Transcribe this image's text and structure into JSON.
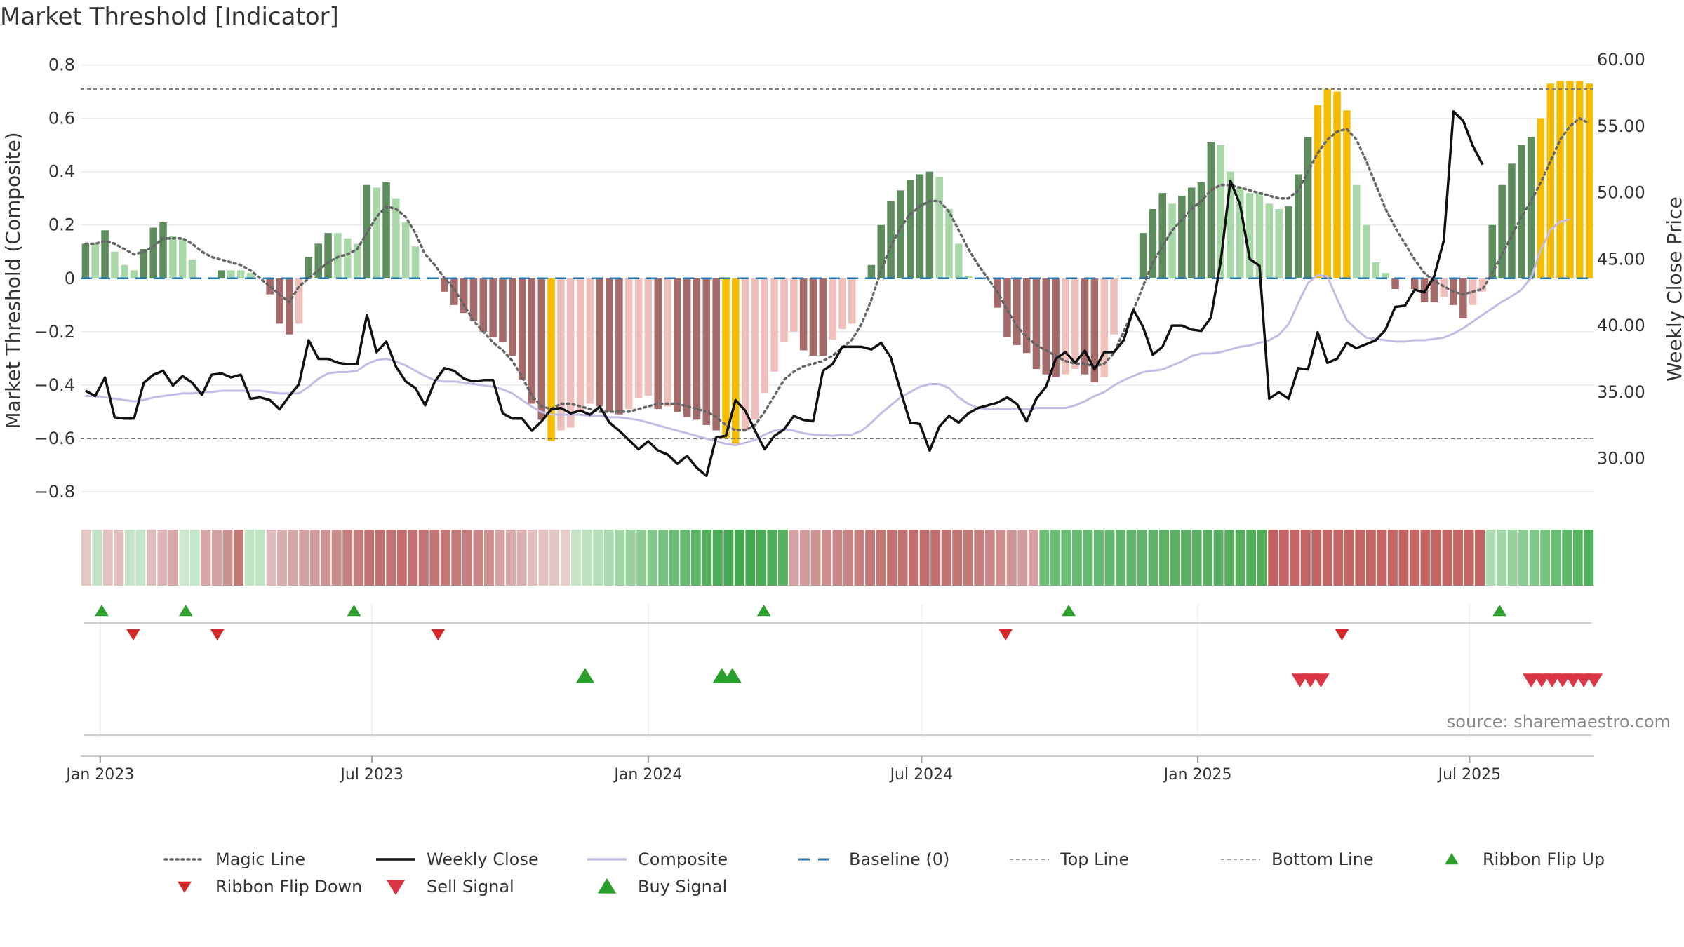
{
  "chart_data": {
    "type": "bar",
    "title": "Market Threshold [Indicator]",
    "source": "source: sharemaestro.com",
    "ylabel_left": "Market Threshold (Composite)",
    "ylabel_right": "Weekly Close Price",
    "ylim_left": [
      -0.85,
      0.82
    ],
    "ylim_right": [
      26.5,
      60.0
    ],
    "yticks_left": [
      "0.8",
      "0.6",
      "0.4",
      "0.2",
      "0",
      "−0.2",
      "−0.4",
      "−0.6",
      "−0.8"
    ],
    "yticks_left_values": [
      0.8,
      0.6,
      0.4,
      0.2,
      0,
      -0.2,
      -0.4,
      -0.6,
      -0.8
    ],
    "yticks_right": [
      "60.00",
      "55.00",
      "50.00",
      "45.00",
      "40.00",
      "35.00",
      "30.00"
    ],
    "yticks_right_values": [
      60,
      55,
      50,
      45,
      40,
      35,
      30
    ],
    "x_start": "2022-12-19",
    "x_end": "2025-09-22",
    "xticks": [
      "Jan 2023",
      "Jul 2023",
      "Jan 2024",
      "Jul 2024",
      "Jan 2025",
      "Jul 2025"
    ],
    "xtick_dates": [
      "2023-01-01",
      "2023-07-01",
      "2024-01-01",
      "2024-07-01",
      "2025-01-01",
      "2025-07-01"
    ],
    "top_line": 0.71,
    "bottom_line": -0.6,
    "baseline": 0,
    "composite": [
      0.13,
      0.13,
      0.18,
      0.1,
      0.05,
      0.03,
      0.11,
      0.19,
      0.21,
      0.16,
      0.15,
      0.07,
      0,
      0,
      0.03,
      0.03,
      0.03,
      0.02,
      0,
      -0.06,
      -0.17,
      -0.21,
      -0.17,
      0.08,
      0.13,
      0.17,
      0.17,
      0.15,
      0.13,
      0.35,
      0.34,
      0.36,
      0.3,
      0.21,
      0.12,
      0,
      0,
      -0.05,
      -0.1,
      -0.13,
      -0.16,
      -0.2,
      -0.22,
      -0.24,
      -0.29,
      -0.38,
      -0.47,
      -0.53,
      -0.61,
      -0.57,
      -0.56,
      -0.5,
      -0.47,
      -0.48,
      -0.5,
      -0.51,
      -0.49,
      -0.45,
      -0.44,
      -0.49,
      -0.48,
      -0.5,
      -0.52,
      -0.53,
      -0.55,
      -0.57,
      -0.6,
      -0.62,
      -0.57,
      -0.53,
      -0.43,
      -0.35,
      -0.24,
      -0.2,
      -0.27,
      -0.29,
      -0.29,
      -0.23,
      -0.19,
      -0.17,
      0,
      0.05,
      0.2,
      0.29,
      0.33,
      0.37,
      0.39,
      0.4,
      0.38,
      0.26,
      0.13,
      0.01,
      0,
      0,
      -0.11,
      -0.22,
      -0.25,
      -0.28,
      -0.34,
      -0.36,
      -0.37,
      -0.36,
      -0.34,
      -0.36,
      -0.39,
      -0.37,
      -0.21,
      0,
      0,
      0.17,
      0.26,
      0.32,
      0.28,
      0.31,
      0.34,
      0.36,
      0.51,
      0.5,
      0.4,
      0.34,
      0.32,
      0.32,
      0.28,
      0.26,
      0.27,
      0.39,
      0.53,
      0.65,
      0.71,
      0.7,
      0.63,
      0.35,
      0.2,
      0.06,
      0.02,
      -0.04,
      0,
      -0.04,
      -0.09,
      -0.09,
      -0.07,
      -0.1,
      -0.15,
      -0.1,
      -0.05,
      0.2,
      0.35,
      0.43,
      0.5,
      0.53,
      0.6,
      0.73,
      0.74,
      0.74,
      0.74,
      0.73
    ],
    "magic_line": [
      0.13,
      0.13,
      0.14,
      0.13,
      0.11,
      0.09,
      0.1,
      0.12,
      0.15,
      0.15,
      0.15,
      0.13,
      0.1,
      0.08,
      0.07,
      0.06,
      0.05,
      0.03,
      0,
      -0.03,
      -0.06,
      -0.09,
      -0.03,
      0,
      0.03,
      0.06,
      0.08,
      0.09,
      0.11,
      0.17,
      0.23,
      0.27,
      0.26,
      0.23,
      0.17,
      0.09,
      0.05,
      0,
      -0.04,
      -0.1,
      -0.16,
      -0.2,
      -0.24,
      -0.27,
      -0.31,
      -0.37,
      -0.44,
      -0.48,
      -0.49,
      -0.47,
      -0.47,
      -0.48,
      -0.49,
      -0.5,
      -0.5,
      -0.5,
      -0.5,
      -0.49,
      -0.48,
      -0.47,
      -0.47,
      -0.47,
      -0.48,
      -0.49,
      -0.5,
      -0.52,
      -0.55,
      -0.57,
      -0.57,
      -0.55,
      -0.5,
      -0.44,
      -0.38,
      -0.35,
      -0.33,
      -0.32,
      -0.31,
      -0.29,
      -0.26,
      -0.23,
      -0.17,
      -0.08,
      0.03,
      0.12,
      0.19,
      0.24,
      0.27,
      0.29,
      0.29,
      0.25,
      0.18,
      0.11,
      0.05,
      0,
      -0.05,
      -0.12,
      -0.18,
      -0.22,
      -0.25,
      -0.27,
      -0.29,
      -0.31,
      -0.32,
      -0.32,
      -0.33,
      -0.32,
      -0.28,
      -0.2,
      -0.12,
      -0.03,
      0.06,
      0.12,
      0.18,
      0.22,
      0.26,
      0.29,
      0.33,
      0.35,
      0.35,
      0.34,
      0.33,
      0.32,
      0.31,
      0.3,
      0.3,
      0.33,
      0.4,
      0.47,
      0.52,
      0.55,
      0.56,
      0.52,
      0.44,
      0.35,
      0.26,
      0.19,
      0.13,
      0.07,
      0.02,
      -0.01,
      -0.03,
      -0.05,
      -0.06,
      -0.05,
      -0.04,
      0.02,
      0.09,
      0.16,
      0.23,
      0.29,
      0.36,
      0.44,
      0.52,
      0.57,
      0.6,
      0.58
    ],
    "composite_line": [
      34.7,
      34.7,
      34.6,
      34.5,
      34.4,
      34.3,
      34.4,
      34.6,
      34.7,
      34.8,
      34.9,
      34.9,
      35.0,
      35.0,
      35.1,
      35.1,
      35.1,
      35.1,
      35.1,
      35.0,
      34.9,
      34.9,
      34.9,
      35.4,
      36.0,
      36.4,
      36.5,
      36.5,
      36.6,
      37.1,
      37.4,
      37.5,
      37.3,
      37.0,
      36.6,
      36.2,
      35.9,
      35.8,
      35.8,
      35.7,
      35.6,
      35.5,
      35.4,
      35.2,
      34.9,
      34.4,
      33.9,
      33.5,
      33.3,
      33.3,
      33.3,
      33.3,
      33.2,
      33.2,
      33.1,
      33.1,
      33.0,
      32.9,
      32.7,
      32.5,
      32.3,
      32.1,
      31.9,
      31.7,
      31.5,
      31.3,
      31.1,
      31.0,
      31.2,
      31.4,
      31.8,
      32.1,
      32.2,
      32.1,
      31.9,
      31.8,
      31.8,
      31.7,
      31.8,
      31.8,
      32.1,
      32.7,
      33.4,
      34.0,
      34.6,
      35.0,
      35.4,
      35.6,
      35.6,
      35.3,
      34.6,
      34.1,
      33.8,
      33.7,
      33.7,
      33.7,
      33.7,
      33.7,
      33.8,
      33.8,
      33.8,
      33.8,
      34.0,
      34.3,
      34.7,
      35.0,
      35.5,
      35.9,
      36.2,
      36.5,
      36.6,
      36.7,
      37.0,
      37.3,
      37.7,
      37.9,
      37.9,
      38.0,
      38.2,
      38.4,
      38.5,
      38.7,
      38.9,
      39.3,
      40.1,
      41.7,
      43.2,
      43.8,
      43.7,
      42.0,
      40.4,
      39.7,
      39.1,
      39.0,
      38.9,
      38.8,
      38.8,
      38.9,
      38.9,
      39.0,
      39.1,
      39.4,
      39.8,
      40.3,
      40.8,
      41.3,
      41.8,
      42.2,
      42.7,
      43.6,
      45.7,
      47.2,
      47.8,
      48.0
    ],
    "weekly_close": [
      35.1,
      34.7,
      36.1,
      33.1,
      33.0,
      33.0,
      35.7,
      36.3,
      36.6,
      35.5,
      36.2,
      35.7,
      34.8,
      36.3,
      36.4,
      36.1,
      36.3,
      34.5,
      34.6,
      34.4,
      33.7,
      34.7,
      35.6,
      38.9,
      37.5,
      37.5,
      37.2,
      37.1,
      37.1,
      40.8,
      38.0,
      38.8,
      36.9,
      35.8,
      35.3,
      34.0,
      35.8,
      36.8,
      36.6,
      36.0,
      35.8,
      35.9,
      35.9,
      33.4,
      33.0,
      33.0,
      32.1,
      32.8,
      33.7,
      33.8,
      33.4,
      33.6,
      33.3,
      33.9,
      32.7,
      32.1,
      31.4,
      30.7,
      31.3,
      30.6,
      30.3,
      29.6,
      30.2,
      29.3,
      28.7,
      31.6,
      31.7,
      34.4,
      33.6,
      32.1,
      30.7,
      31.7,
      32.2,
      33.2,
      32.9,
      32.8,
      36.6,
      37.1,
      38.4,
      38.4,
      38.4,
      38.2,
      38.7,
      37.6,
      35.1,
      32.7,
      32.6,
      30.6,
      32.4,
      33.2,
      32.7,
      33.4,
      33.8,
      34.0,
      34.2,
      34.6,
      34.1,
      32.8,
      34.5,
      35.4,
      37.5,
      38.0,
      37.2,
      38.1,
      36.7,
      38.0,
      38.0,
      38.9,
      41.2,
      39.9,
      37.8,
      38.4,
      40.0,
      40.0,
      39.7,
      39.6,
      40.6,
      44.8,
      50.9,
      49.1,
      45.0,
      44.5,
      34.5,
      35.0,
      34.5,
      36.8,
      36.7,
      39.5,
      37.2,
      37.5,
      38.7,
      38.3,
      38.6,
      38.9,
      39.7,
      41.4,
      41.5,
      42.7,
      42.5,
      43.7,
      46.4,
      56.1,
      55.4,
      53.5,
      52.1
    ],
    "ribbon": [
      "#e5c8c8",
      "#c3e3c6",
      "#e2c3c3",
      "#e0bebe",
      "#c5e4c8",
      "#c7e5c9",
      "#e0bdbd",
      "#dbb5b5",
      "#d8a9a9",
      "#cfe9d1",
      "#c6e6c9",
      "#d6a5a5",
      "#d3a0a0",
      "#cd9090",
      "#c47878",
      "#c0e5c3",
      "#bfe5c2",
      "#dfb9b9",
      "#d9adad",
      "#d6a7a7",
      "#d4a1a1",
      "#d09a9a",
      "#ce9494",
      "#cb8d8d",
      "#c77e7e",
      "#c67d7d",
      "#c27272",
      "#c07070",
      "#c27373",
      "#c36f6f",
      "#c27272",
      "#c37474",
      "#c47676",
      "#c47777",
      "#c57a7a",
      "#c57c7c",
      "#c98686",
      "#cd9090",
      "#d5a2a2",
      "#d8a9a9",
      "#dbb1b1",
      "#e0bcbc",
      "#e2c1c1",
      "#e4c5c5",
      "#e8cdcd",
      "#c4e6c6",
      "#bde3c0",
      "#b5dfb9",
      "#a9d9ae",
      "#9fd5a5",
      "#96d19c",
      "#8ccc93",
      "#82c78a",
      "#78c281",
      "#6ebd78",
      "#65b96f",
      "#5cb467",
      "#54b05f",
      "#4dac59",
      "#48aa54",
      "#44a850",
      "#46a952",
      "#4bab56",
      "#50ae5b",
      "#56b161",
      "#d4a2a2",
      "#d09a9a",
      "#cd9292",
      "#cb8e8e",
      "#c98888",
      "#c78383",
      "#c58080",
      "#c47a7a",
      "#c37878",
      "#c27474",
      "#c27272",
      "#c16f6f",
      "#c06e6e",
      "#c16f6f",
      "#c17272",
      "#c27575",
      "#c47979",
      "#c67f7f",
      "#c98686",
      "#cc8e8e",
      "#ce9393",
      "#d19a9a",
      "#d4a0a0",
      "#6dbe77",
      "#6cbd75",
      "#6abb74",
      "#68ba72",
      "#66b970",
      "#64b86f",
      "#63b76d",
      "#61b66c",
      "#60b56a",
      "#5eb468",
      "#5db367",
      "#5cb265",
      "#5bb164",
      "#5ab063",
      "#59b062",
      "#58af61",
      "#57ae60",
      "#56ae5f",
      "#55ad5e",
      "#54ad5d",
      "#53ac5c",
      "#c25f5f",
      "#c56565",
      "#c56565",
      "#c56565",
      "#c46363",
      "#c56666",
      "#c56565",
      "#c46464",
      "#c56565",
      "#c56565",
      "#c56565",
      "#c56565",
      "#c46363",
      "#c56565",
      "#c56565",
      "#c46464",
      "#c56565",
      "#c56565",
      "#c56565",
      "#c46363",
      "#aadbb0",
      "#9fd6a5",
      "#94d19b",
      "#89cc91",
      "#7ec786",
      "#73c27d",
      "#69bd74",
      "#5fb86a",
      "#56b461",
      "#4eb05a"
    ],
    "markers": {
      "ribbon_flip_up": [
        "2023-01-02",
        "2023-02-27",
        "2023-06-19",
        "2024-03-18",
        "2024-10-07",
        "2025-07-21"
      ],
      "ribbon_flip_down": [
        "2023-01-23",
        "2023-03-20",
        "2023-08-14",
        "2024-08-26",
        "2025-04-07"
      ],
      "buy_signal": [
        "2023-11-20",
        "2024-02-19",
        "2024-02-26"
      ],
      "sell_signal": [
        "2025-03-10",
        "2025-03-17",
        "2025-03-24",
        "2025-08-11",
        "2025-08-18",
        "2025-08-25",
        "2025-09-01",
        "2025-09-08",
        "2025-09-15",
        "2025-09-22"
      ]
    },
    "colors": {
      "bar_pos_dark": "#5d8c5d",
      "bar_pos_light": "#a8d8a8",
      "bar_neg_dark": "#a56a6a",
      "bar_neg_light": "#efbfbb",
      "bar_extreme": "#f5bc00",
      "magic_line": "#666666",
      "weekly_close": "#111111",
      "composite_line": "#c3bde6",
      "baseline": "#1f77b4",
      "ref_lines": "#777777",
      "flip_up": "#2ca02c",
      "flip_down": "#d62728",
      "buy": "#2ca02c",
      "sell": "#dc3545"
    },
    "legend": [
      {
        "label": "Magic Line",
        "kind": "dotted",
        "color": "#666666"
      },
      {
        "label": "Weekly Close",
        "kind": "solid",
        "color": "#111111"
      },
      {
        "label": "Composite",
        "kind": "solid",
        "color": "#c3bde6"
      },
      {
        "label": "Baseline (0)",
        "kind": "dashed",
        "color": "#1f77b4"
      },
      {
        "label": "Top Line",
        "kind": "fine-dashed",
        "color": "#999999"
      },
      {
        "label": "Bottom Line",
        "kind": "fine-dashed",
        "color": "#999999"
      },
      {
        "label": "Ribbon Flip Up",
        "kind": "tri-up-small",
        "color": "#2ca02c"
      },
      {
        "label": "Ribbon Flip Down",
        "kind": "tri-down-small",
        "color": "#d62728"
      },
      {
        "label": "Sell Signal",
        "kind": "tri-down",
        "color": "#dc3545"
      },
      {
        "label": "Buy Signal",
        "kind": "tri-up",
        "color": "#2ca02c"
      }
    ]
  }
}
